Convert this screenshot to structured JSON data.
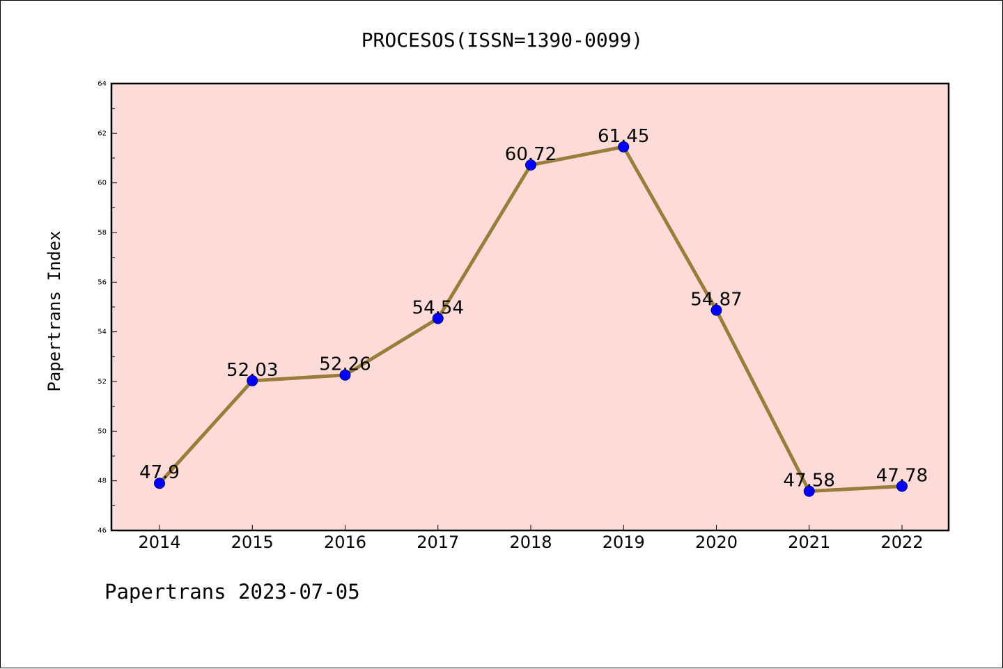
{
  "chart_data": {
    "type": "line",
    "title": "PROCESOS(ISSN=1390-0099)",
    "xlabel": "",
    "ylabel": "Papertrans Index",
    "categories": [
      "2014",
      "2015",
      "2016",
      "2017",
      "2018",
      "2019",
      "2020",
      "2021",
      "2022"
    ],
    "series": [
      {
        "values": [
          47.9,
          52.03,
          52.26,
          54.54,
          60.72,
          61.45,
          54.87,
          47.58,
          47.78
        ],
        "labels": [
          "47.9",
          "52.03",
          "52.26",
          "54.54",
          "60.72",
          "61.45",
          "54.87",
          "47.58",
          "47.78"
        ]
      }
    ],
    "ylim": [
      46,
      64
    ],
    "yticks": [
      "46",
      "48",
      "50",
      "52",
      "54",
      "56",
      "58",
      "60",
      "62",
      "64"
    ],
    "grid": false,
    "legend": "none",
    "colors": {
      "plot_background": "#fddbd8",
      "line": "#9a7d3a",
      "marker": "#0000ff",
      "frame": "#000000"
    }
  },
  "footer": "Papertrans 2023-07-05"
}
